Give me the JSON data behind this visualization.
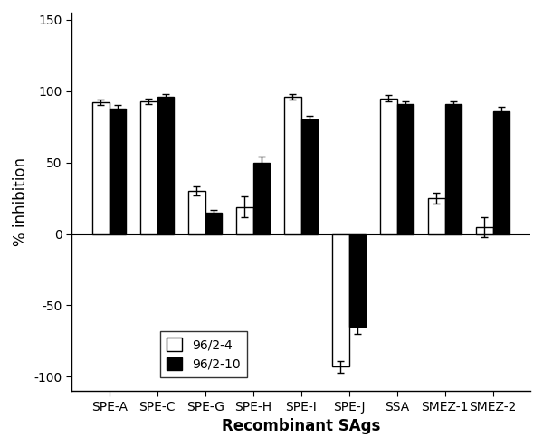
{
  "categories": [
    "SPE-A",
    "SPE-C",
    "SPE-G",
    "SPE-H",
    "SPE-I",
    "SPE-J",
    "SSA",
    "SMEZ-1",
    "SMEZ-2"
  ],
  "series1_values": [
    92,
    93,
    30,
    19,
    96,
    -93,
    95,
    25,
    5
  ],
  "series2_values": [
    88,
    96,
    15,
    50,
    80,
    -65,
    91,
    91,
    86
  ],
  "series1_errors": [
    2,
    2,
    3,
    7,
    2,
    4,
    2,
    4,
    7
  ],
  "series2_errors": [
    2,
    2,
    2,
    4,
    3,
    5,
    2,
    2,
    3
  ],
  "series1_label": "96/2-4",
  "series2_label": "96/2-10",
  "series1_color": "white",
  "series2_color": "black",
  "series1_edgecolor": "black",
  "series2_edgecolor": "black",
  "xlabel": "Recombinant SAgs",
  "ylabel": "% inhibition",
  "ylim": [
    -110,
    155
  ],
  "yticks": [
    -100,
    -50,
    0,
    50,
    100,
    150
  ],
  "bar_width": 0.35,
  "figsize": [
    6.0,
    4.94
  ],
  "dpi": 100,
  "background_color": "white",
  "legend_fontsize": 10,
  "axis_fontsize": 12,
  "tick_fontsize": 10
}
